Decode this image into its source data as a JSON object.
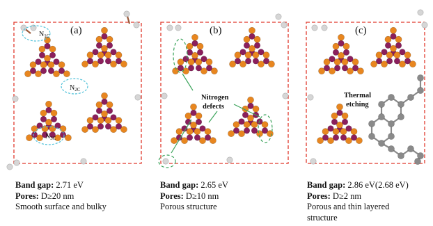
{
  "colors": {
    "carbon": "#e8861f",
    "nitrogen": "#8b1f5c",
    "hydrogen": "#d6d6d6",
    "etched_carbon": "#8a8a8a",
    "box_border": "#e0392c",
    "annotation_ellipse": "#4fc1d9",
    "defect_ellipse": "#3aa35a"
  },
  "panels": [
    {
      "id": "a",
      "label": "(a)",
      "annotations": [
        "N1C",
        "N2C",
        "N3C"
      ],
      "annotation_parts": [
        {
          "main": "N",
          "sub": "1C"
        },
        {
          "main": "N",
          "sub": "2C"
        },
        {
          "main": "N",
          "sub": "3C"
        }
      ],
      "caption": {
        "band_gap_label": "Band gap:",
        "band_gap_value": "2.71 eV",
        "pores_label": "Pores:",
        "pores_value": "D≥20 nm",
        "description": "Smooth surface and bulky"
      }
    },
    {
      "id": "b",
      "label": "(b)",
      "annotation_lines": [
        "Nitrogen",
        "defects"
      ],
      "caption": {
        "band_gap_label": "Band gap:",
        "band_gap_value": "2.65 eV",
        "pores_label": "Pores:",
        "pores_value": "D≥10 nm",
        "description": "Porous structure"
      }
    },
    {
      "id": "c",
      "label": "(c)",
      "annotation_lines": [
        "Thermal",
        "etching"
      ],
      "caption": {
        "band_gap_label": "Band gap:",
        "band_gap_value": "2.86 eV(2.68 eV)",
        "pores_label": "Pores:",
        "pores_value": "D≥2 nm",
        "description_line1": "Porous and thin layered",
        "description_line2": "structure"
      }
    }
  ]
}
